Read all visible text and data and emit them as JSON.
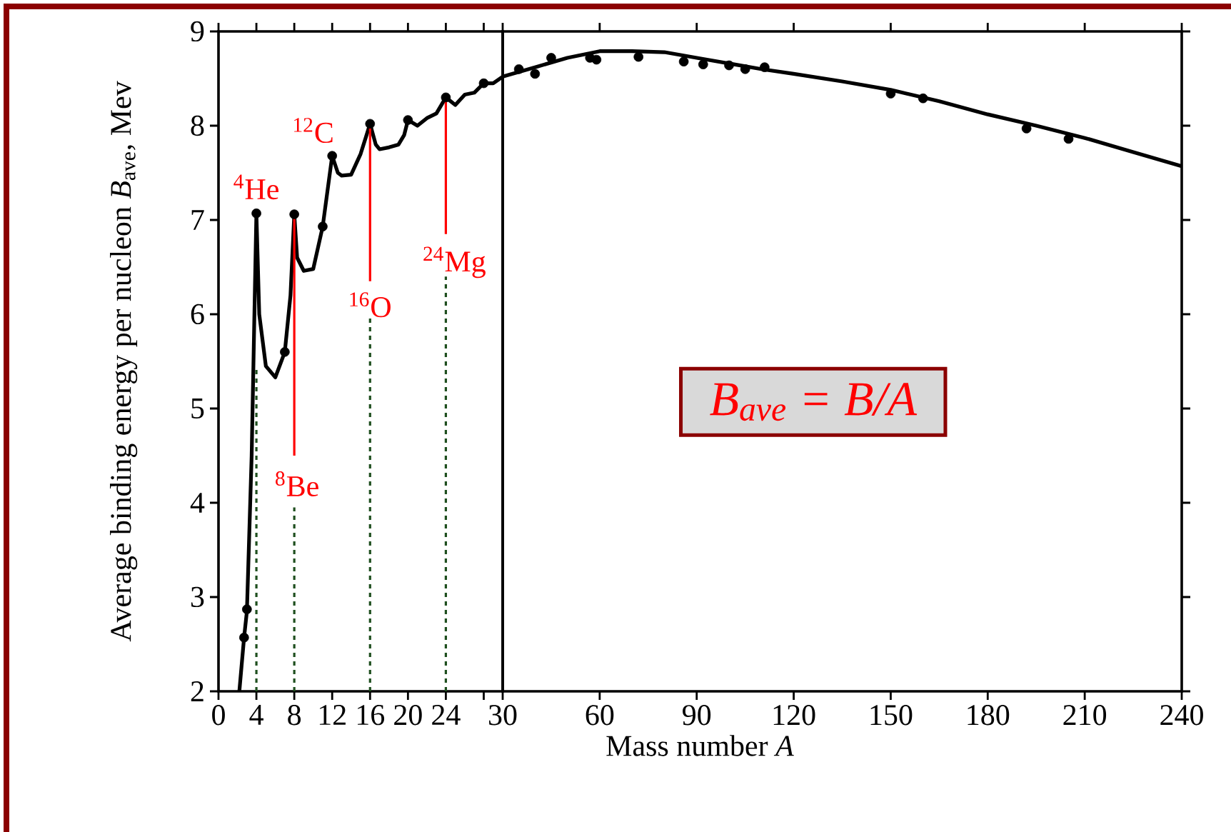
{
  "chart_data": [
    {
      "type": "line",
      "xlim": [
        0,
        30
      ],
      "xticks": [
        0,
        4,
        8,
        12,
        16,
        20,
        24,
        {
          "value": 28,
          "label": null
        }
      ],
      "ylim": [
        2,
        9
      ],
      "yticks": [
        2,
        3,
        4,
        5,
        6,
        7,
        8,
        9
      ],
      "ylabel": "Average binding energy per nucleon *B*$_{ave}$, Mev",
      "series": [
        {
          "type": "line",
          "color": "#000000",
          "marker": "none",
          "x": [
            2.2,
            2.7,
            3,
            3.5,
            4,
            4.3,
            5,
            6,
            7,
            7.6,
            8,
            8.3,
            9,
            10,
            11,
            12,
            12.6,
            13,
            14,
            15,
            16,
            16.6,
            17,
            18,
            19,
            19.6,
            20,
            21,
            22,
            23,
            24,
            25,
            26,
            27,
            28,
            29,
            30
          ],
          "values": [
            2.0,
            2.57,
            2.85,
            4.5,
            7.07,
            6.0,
            5.45,
            5.33,
            5.6,
            6.2,
            7.06,
            6.6,
            6.46,
            6.48,
            6.93,
            7.68,
            7.5,
            7.47,
            7.48,
            7.7,
            8.02,
            7.8,
            7.75,
            7.77,
            7.8,
            7.9,
            8.06,
            8.0,
            8.08,
            8.13,
            8.3,
            8.22,
            8.33,
            8.35,
            8.45,
            8.45,
            8.52
          ]
        },
        {
          "type": "scatter",
          "color": "#000000",
          "marker": "circle",
          "x": [
            2.7,
            3,
            4,
            7,
            8,
            11,
            12,
            16,
            20,
            24,
            28
          ],
          "values": [
            2.57,
            2.87,
            7.07,
            5.6,
            7.06,
            6.93,
            7.68,
            8.02,
            8.06,
            8.3,
            8.45
          ]
        }
      ],
      "annotations": [
        {
          "text": "$^{4}$He",
          "x": 4,
          "y": 7.07
        },
        {
          "text": "$^{12}$C",
          "x": 12,
          "y": 7.68
        },
        {
          "text": "$^{8}$Be",
          "x": 8,
          "y": 7.06
        },
        {
          "text": "$^{16}$O",
          "x": 16,
          "y": 8.02
        },
        {
          "text": "$^{24}$Mg",
          "x": 24,
          "y": 8.3
        }
      ],
      "ref_lines": [
        {
          "axis": "x",
          "value": 4,
          "color": "#1f4f1f",
          "line_style": "dashed"
        },
        {
          "axis": "x",
          "value": 8,
          "color": "#1f4f1f",
          "line_style": "dashed"
        },
        {
          "axis": "x",
          "value": 16,
          "color": "#1f4f1f",
          "line_style": "dashed"
        },
        {
          "axis": "x",
          "value": 24,
          "color": "#1f4f1f",
          "line_style": "dashed"
        }
      ]
    },
    {
      "type": "line",
      "xlim": [
        30,
        240
      ],
      "xticks": [
        30,
        60,
        90,
        120,
        150,
        180,
        210,
        240
      ],
      "ylim": [
        2,
        9
      ],
      "yticks": [
        {
          "value": 2,
          "label": null
        },
        {
          "value": 3,
          "label": null
        },
        {
          "value": 4,
          "label": null
        },
        {
          "value": 5,
          "label": null
        },
        {
          "value": 6,
          "label": null
        },
        {
          "value": 7,
          "label": null
        },
        {
          "value": 8,
          "label": null
        },
        {
          "value": 9,
          "label": null
        }
      ],
      "tick_labels": "x",
      "xlabel": "Mass number *A*",
      "series": [
        {
          "type": "line",
          "color": "#000000",
          "marker": "none",
          "x": [
            30,
            40,
            50,
            60,
            70,
            80,
            90,
            100,
            110,
            120,
            135,
            150,
            165,
            180,
            195,
            210,
            225,
            240
          ],
          "values": [
            8.52,
            8.62,
            8.72,
            8.79,
            8.79,
            8.78,
            8.72,
            8.66,
            8.6,
            8.55,
            8.47,
            8.38,
            8.26,
            8.12,
            8.0,
            7.87,
            7.72,
            7.57
          ]
        },
        {
          "type": "scatter",
          "color": "#000000",
          "marker": "circle",
          "x": [
            35,
            40,
            45,
            57,
            59,
            72,
            86,
            92,
            100,
            105,
            111,
            150,
            160,
            192,
            205
          ],
          "values": [
            8.6,
            8.55,
            8.72,
            8.72,
            8.7,
            8.73,
            8.68,
            8.65,
            8.64,
            8.6,
            8.62,
            8.34,
            8.29,
            7.97,
            7.86
          ]
        }
      ],
      "annotations": [
        "B$_{ave}$ = B/A"
      ]
    }
  ]
}
